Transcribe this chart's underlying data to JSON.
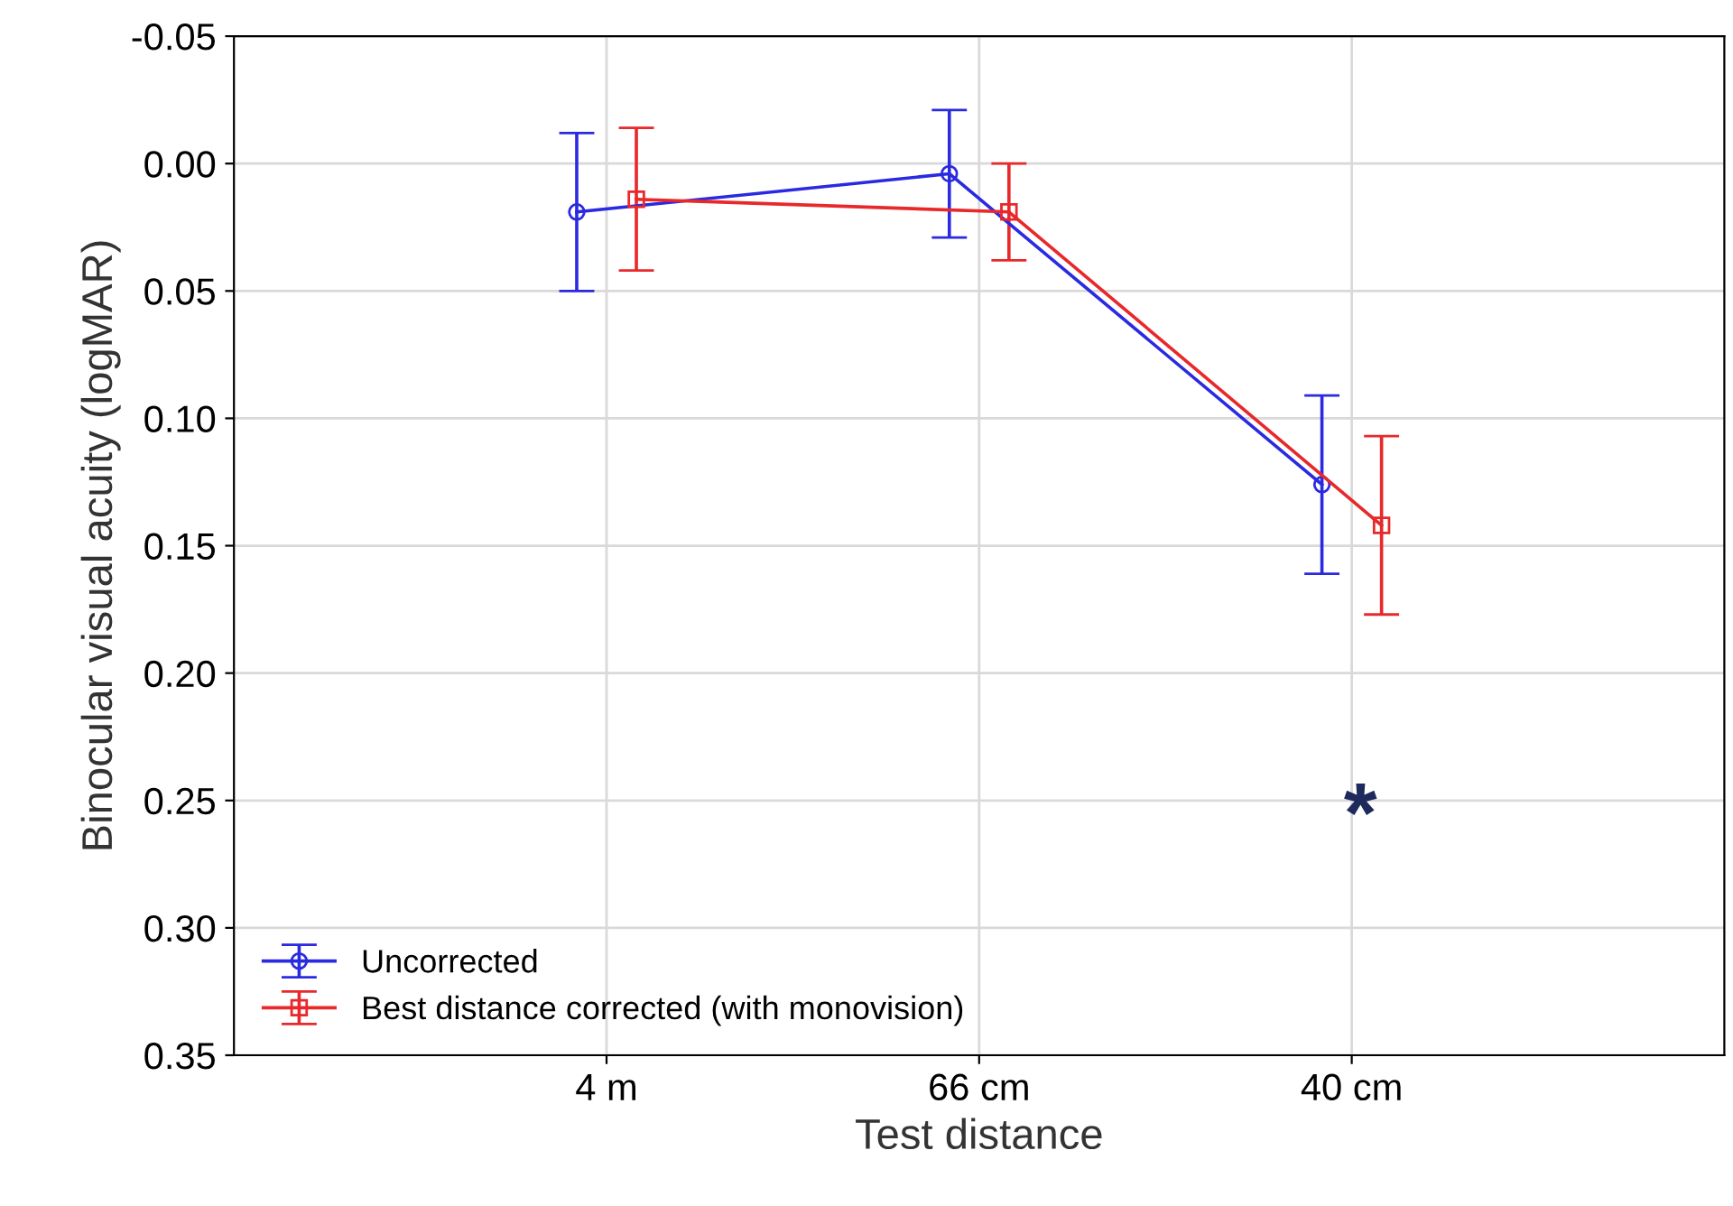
{
  "chart_data": {
    "type": "line",
    "xlabel": "Test distance",
    "ylabel": "Binocular visual acuity (logMAR)",
    "categories": [
      "4 m",
      "66 cm",
      "40 cm"
    ],
    "series": [
      {
        "name": "Uncorrected",
        "color": "#2a2ae0",
        "values": [
          0.019,
          0.004,
          0.126
        ],
        "errors": [
          0.031,
          0.025,
          0.035
        ],
        "marker": "circle"
      },
      {
        "name": "Best distance corrected (with monovision)",
        "color": "#e8282a",
        "values": [
          0.014,
          0.019,
          0.142
        ],
        "errors": [
          0.028,
          0.019,
          0.035
        ],
        "marker": "square"
      }
    ],
    "ylim": [
      0.35,
      -0.05
    ],
    "yticks": [
      {
        "value": -0.05,
        "label": "-0.05"
      },
      {
        "value": 0,
        "label": "0.00"
      },
      {
        "value": 0.05,
        "label": "0.05"
      },
      {
        "value": 0.1,
        "label": "0.10"
      },
      {
        "value": 0.15,
        "label": "0.15"
      },
      {
        "value": 0.2,
        "label": "0.20"
      },
      {
        "value": 0.25,
        "label": "0.25"
      },
      {
        "value": 0.3,
        "label": "0.30"
      },
      {
        "value": 0.35,
        "label": "0.35"
      }
    ],
    "grid": true,
    "legend": "bottom left",
    "line_style": "solid",
    "annotations": [
      "*"
    ]
  }
}
